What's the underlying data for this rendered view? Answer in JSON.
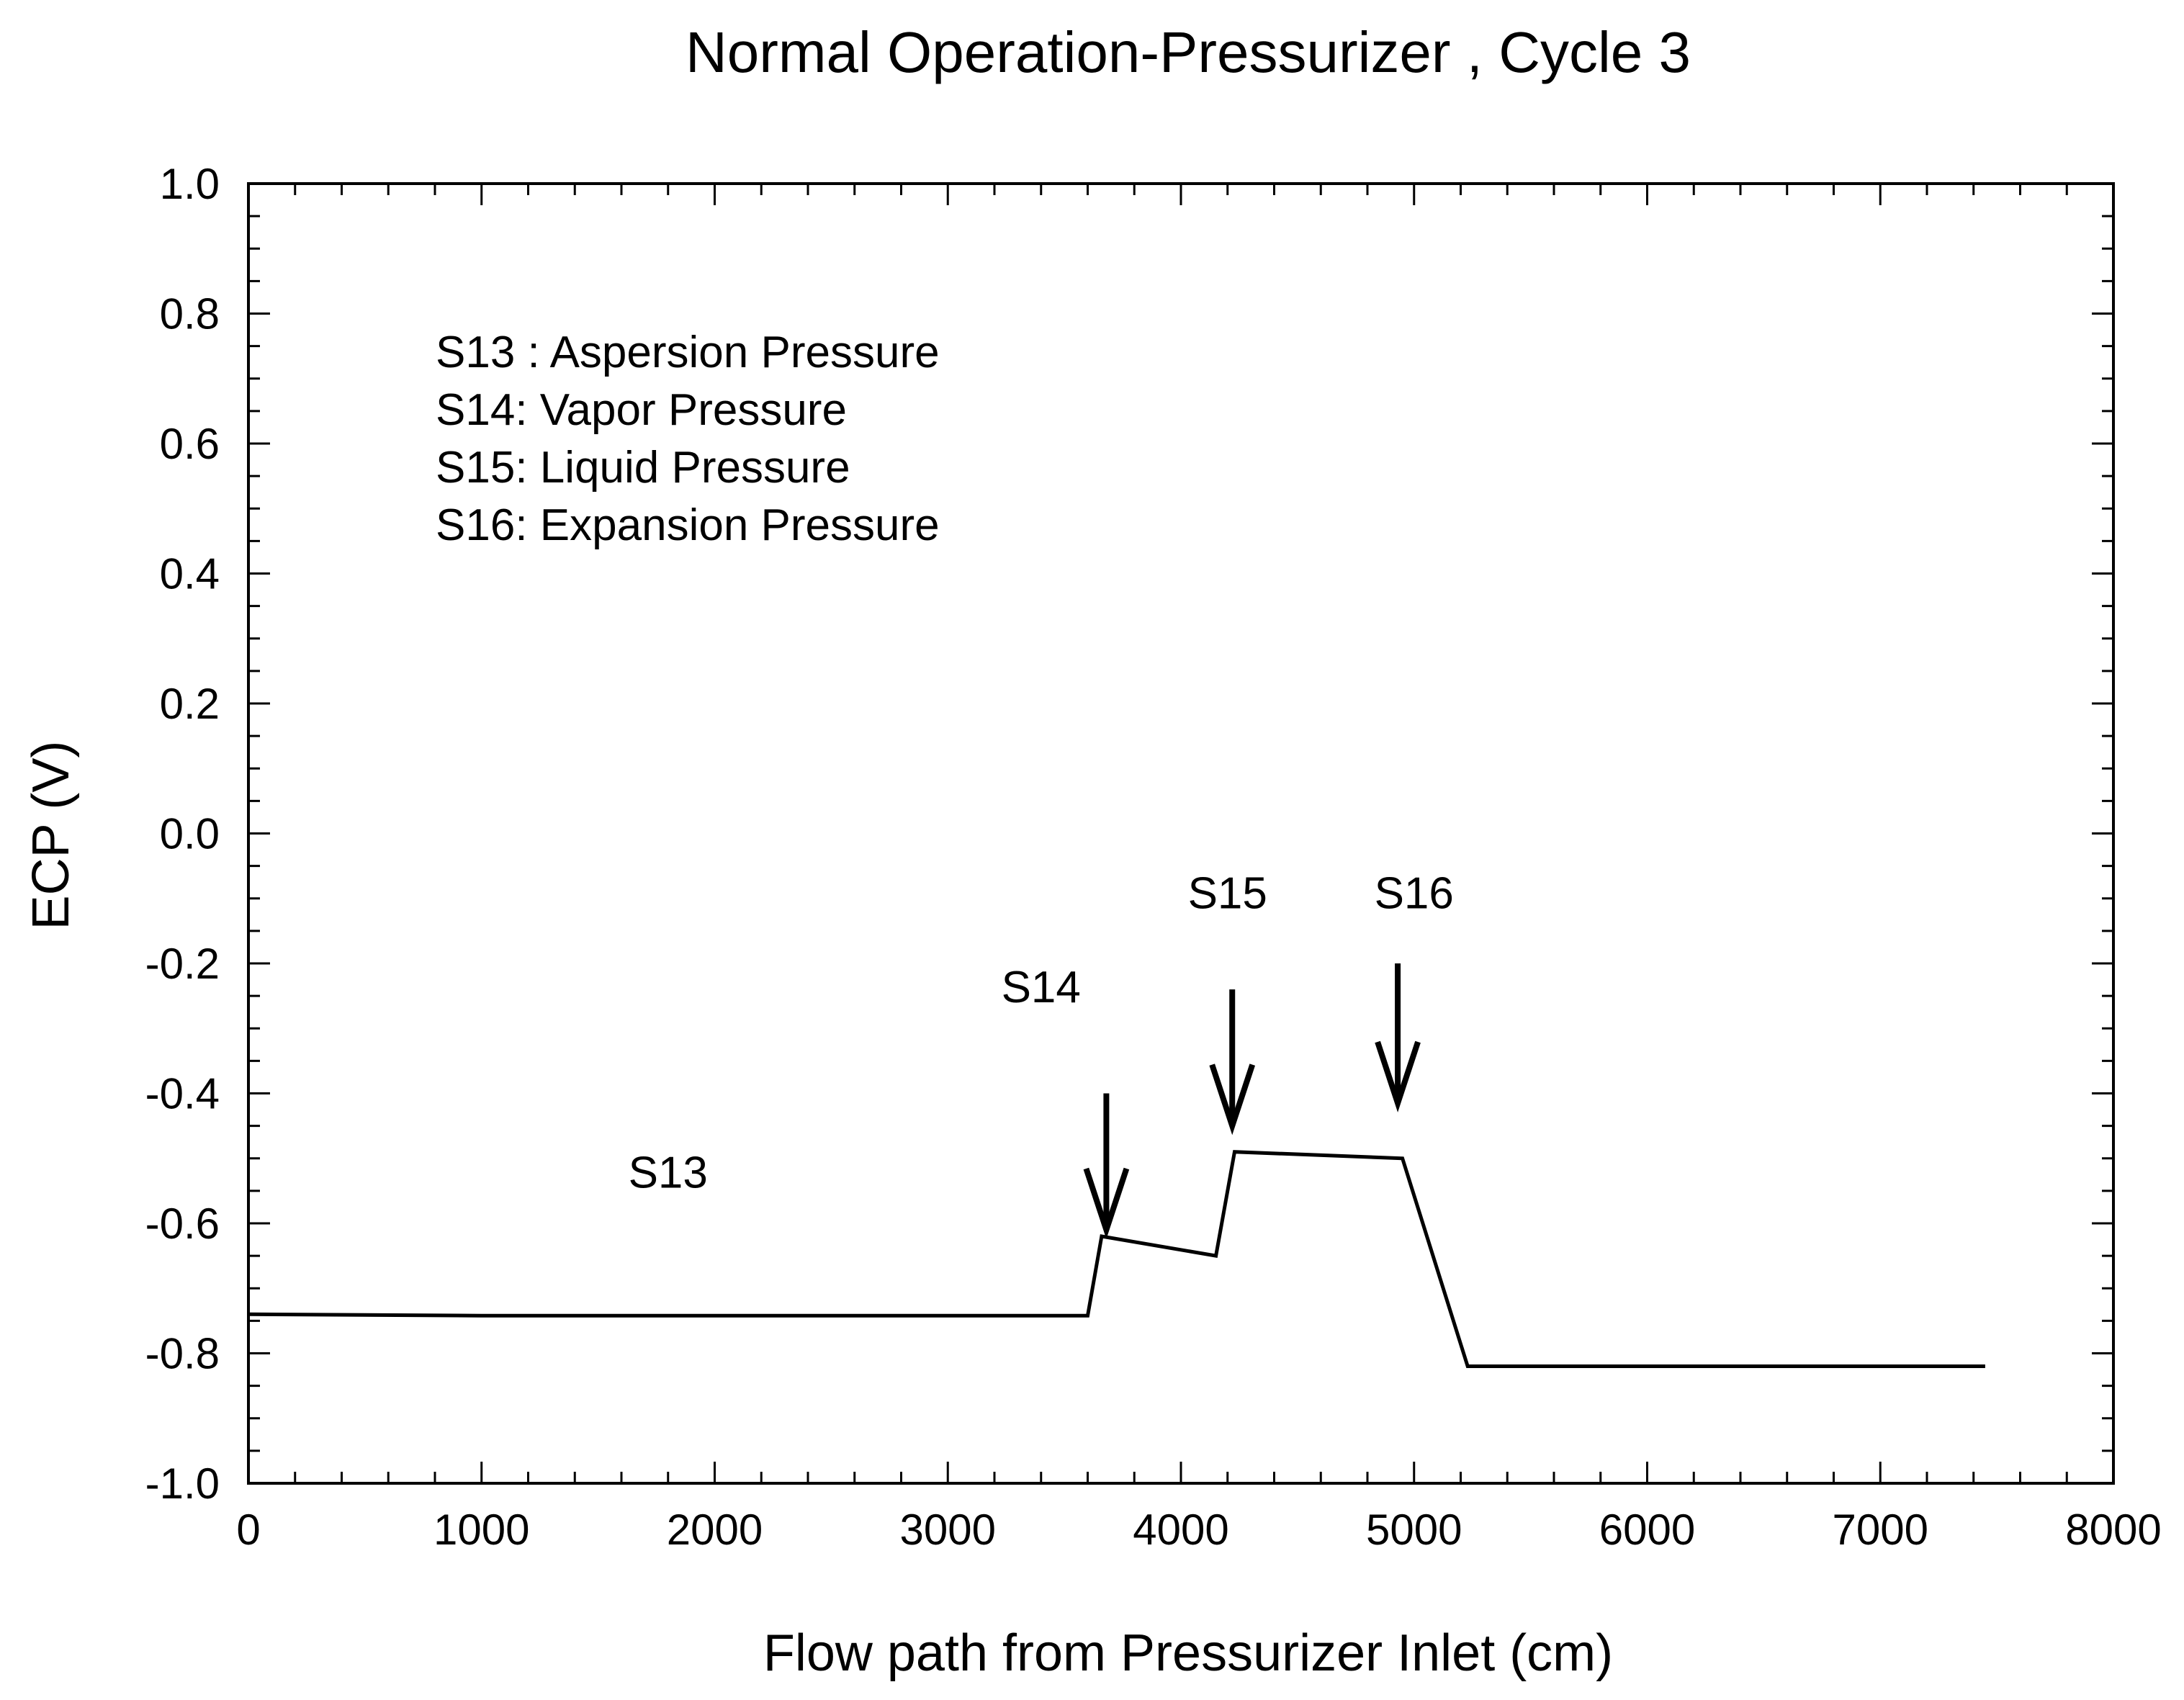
{
  "chart_data": {
    "type": "line",
    "title": "Normal Operation-Pressurizer , Cycle 3",
    "xlabel": "Flow path from Pressurizer Inlet (cm)",
    "ylabel": "ECP (V)",
    "xlim": [
      0,
      8000
    ],
    "ylim": [
      -1.0,
      1.0
    ],
    "x_ticks": [
      0,
      1000,
      2000,
      3000,
      4000,
      5000,
      6000,
      7000,
      8000
    ],
    "x_tick_labels": [
      "0",
      "1000",
      "2000",
      "3000",
      "4000",
      "5000",
      "6000",
      "7000",
      "8000"
    ],
    "y_ticks": [
      1.0,
      0.8,
      0.6,
      0.4,
      0.2,
      0.0,
      -0.2,
      -0.4,
      -0.6,
      -0.8,
      -1.0
    ],
    "y_tick_labels": [
      "1.0",
      "0.8",
      "0.6",
      "0.4",
      "0.2",
      "0.0",
      "-0.2",
      "-0.4",
      "-0.6",
      "-0.8",
      "-1.0"
    ],
    "grid": false,
    "series": [
      {
        "name": "ECP",
        "x": [
          0,
          1000,
          3600,
          3660,
          4150,
          4230,
          4950,
          5230,
          7450
        ],
        "y": [
          -0.74,
          -0.742,
          -0.742,
          -0.62,
          -0.65,
          -0.49,
          -0.5,
          -0.82,
          -0.82
        ]
      }
    ],
    "legend": {
      "placement": "top-left",
      "entries": [
        "S13 : Aspersion Pressure",
        "S14: Vapor Pressure",
        "S15: Liquid Pressure",
        "S16: Expansion Pressure"
      ]
    },
    "annotations": [
      {
        "label": "S13",
        "x": 1800,
        "y": -0.545,
        "arrow": false
      },
      {
        "label": "S14",
        "x": 3400,
        "y": -0.26,
        "arrow": true,
        "arrow_from": -0.4,
        "arrow_to": -0.61
      },
      {
        "label": "S15",
        "x": 4200,
        "y": -0.115,
        "arrow": true,
        "arrow_from": -0.24,
        "arrow_to": -0.45
      },
      {
        "label": "S16",
        "x": 5000,
        "y": -0.115,
        "arrow": true,
        "arrow_from": -0.2,
        "arrow_to": -0.415
      }
    ]
  },
  "colors": {
    "line": "#000000",
    "axis": "#000000",
    "background": "#ffffff"
  }
}
